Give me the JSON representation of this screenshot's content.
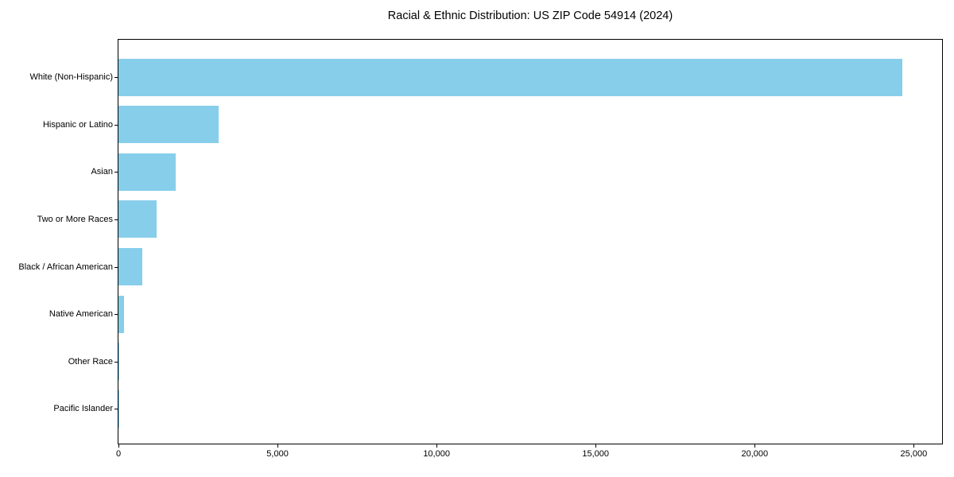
{
  "chart_data": {
    "type": "bar",
    "orientation": "horizontal",
    "title": "Racial & Ethnic Distribution: US ZIP Code 54914 (2024)",
    "categories": [
      "White (Non-Hispanic)",
      "Hispanic or Latino",
      "Asian",
      "Two or More Races",
      "Black / African American",
      "Native American",
      "Other Race",
      "Pacific Islander"
    ],
    "values": [
      24650,
      3150,
      1790,
      1190,
      750,
      175,
      35,
      10
    ],
    "xlabel": "",
    "ylabel": "",
    "xlim": [
      0,
      25890
    ],
    "x_ticks": [
      0,
      5000,
      10000,
      15000,
      20000,
      25000
    ],
    "x_tick_labels": [
      "0",
      "5,000",
      "10,000",
      "15,000",
      "20,000",
      "25,000"
    ],
    "bar_color": "#87CEEB",
    "axis_color": "#000000",
    "text_color": "#000000",
    "background": "#ffffff",
    "grid": false,
    "legend": null
  }
}
